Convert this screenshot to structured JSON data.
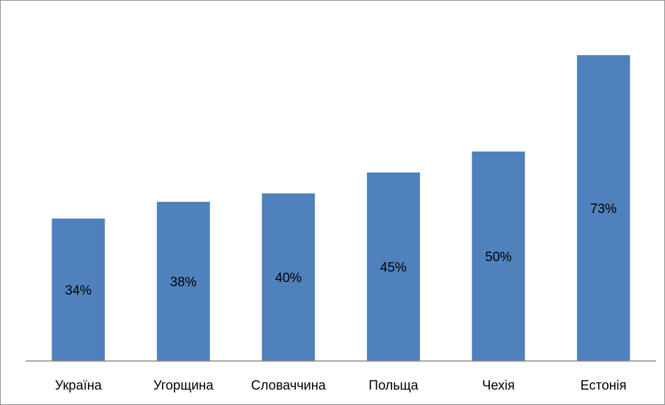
{
  "chart_data": {
    "type": "bar",
    "categories": [
      "Україна",
      "Угорщина",
      "Словаччина",
      "Польща",
      "Чехія",
      "Естонія"
    ],
    "values": [
      34,
      38,
      40,
      45,
      50,
      73
    ],
    "data_labels": [
      "34%",
      "38%",
      "40%",
      "45%",
      "50%",
      "73%"
    ],
    "title": "",
    "xlabel": "",
    "ylabel": "",
    "ylim": [
      0,
      80
    ],
    "grid": false,
    "legend": "none",
    "bar_color": "#4f81bd",
    "axis_color": "#868686"
  }
}
